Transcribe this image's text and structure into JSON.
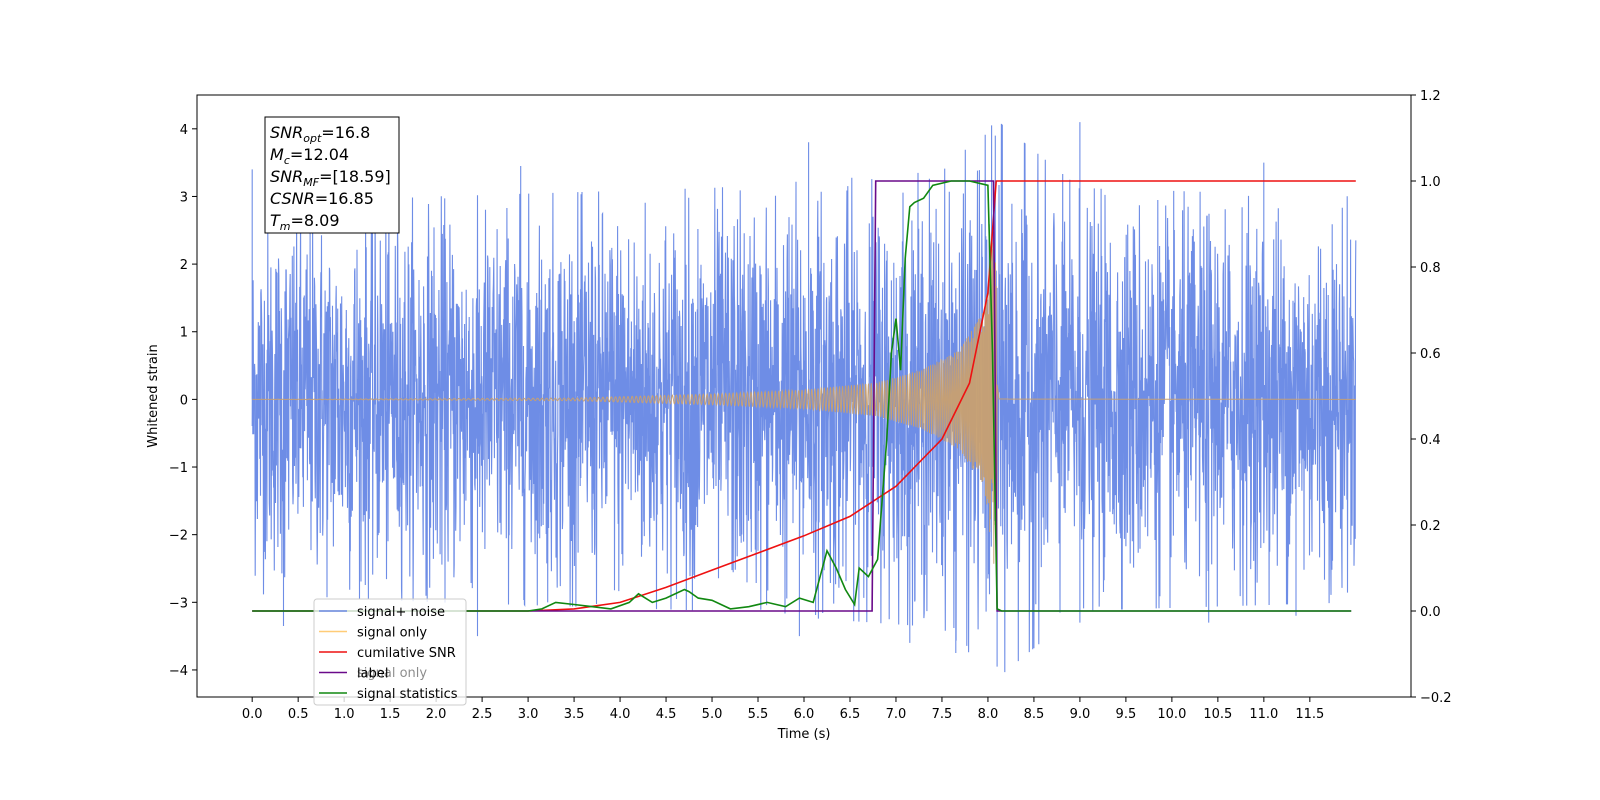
{
  "chart_data": {
    "type": "line",
    "xlabel": "Time (s)",
    "ylabel": "Whitened strain",
    "xlim": [
      -0.6,
      12.6
    ],
    "ylim": [
      -4.4,
      4.5
    ],
    "y2lim": [
      -0.2,
      1.2
    ],
    "x_ticks": [
      "0.0",
      "0.5",
      "1.0",
      "1.5",
      "2.0",
      "2.5",
      "3.0",
      "3.5",
      "4.0",
      "4.5",
      "5.0",
      "5.5",
      "6.0",
      "6.5",
      "7.0",
      "7.5",
      "8.0",
      "8.5",
      "9.0",
      "9.5",
      "10.0",
      "10.5",
      "11.0",
      "11.5"
    ],
    "y_ticks": [
      "4",
      "3",
      "2",
      "1",
      "0",
      "−1",
      "−2",
      "−3",
      "−4"
    ],
    "y2_ticks": [
      "1.2",
      "1.0",
      "0.8",
      "0.6",
      "0.4",
      "0.2",
      "0.0",
      "−0.2"
    ],
    "grid": false,
    "legend_position": "lower-left",
    "annotation": {
      "lines": [
        {
          "base": "SNR",
          "sub": "opt",
          "value": "=16.8"
        },
        {
          "base": "M",
          "sub": "c",
          "value": "=12.04"
        },
        {
          "base": "SNR",
          "sub": "MF",
          "value": "=[18.59]"
        },
        {
          "base": "CSNR",
          "sub": "",
          "value": "=16.85"
        },
        {
          "base": "T",
          "sub": "m",
          "value": "=8.09"
        }
      ]
    },
    "legend_overlap_text": "signal only",
    "series": [
      {
        "name": "signal+ noise",
        "color": "#6e8de6",
        "axis": "left",
        "kind": "noise_band",
        "x_range": [
          0.0,
          12.0
        ],
        "envelope": [
          [
            0.0,
            2.3
          ],
          [
            2.0,
            2.4
          ],
          [
            5.0,
            2.5
          ],
          [
            7.5,
            2.7
          ],
          [
            8.1,
            3.3
          ],
          [
            9.0,
            2.5
          ],
          [
            12.0,
            2.4
          ]
        ],
        "peak_spikes": [
          [
            0.0,
            3.4
          ],
          [
            0.34,
            -3.35
          ],
          [
            2.45,
            -3.5
          ],
          [
            2.92,
            3.45
          ],
          [
            5.95,
            -3.5
          ],
          [
            6.05,
            3.8
          ],
          [
            6.75,
            2.7
          ],
          [
            7.15,
            -3.6
          ],
          [
            7.65,
            -3.75
          ],
          [
            8.08,
            3.9
          ],
          [
            8.1,
            -3.95
          ],
          [
            9.0,
            4.1
          ],
          [
            9.0,
            -3.3
          ],
          [
            10.4,
            -3.3
          ],
          [
            11.0,
            3.5
          ],
          [
            11.35,
            -3.2
          ]
        ]
      },
      {
        "name": "signal only",
        "color": "#c8a070",
        "axis": "left",
        "kind": "chirp",
        "x_range": [
          0.0,
          12.0
        ],
        "amplitude": [
          [
            0.0,
            0.0
          ],
          [
            3.5,
            0.02
          ],
          [
            5.0,
            0.08
          ],
          [
            6.0,
            0.14
          ],
          [
            6.8,
            0.25
          ],
          [
            7.3,
            0.45
          ],
          [
            7.7,
            0.75
          ],
          [
            7.95,
            1.3
          ],
          [
            8.07,
            2.5
          ],
          [
            8.09,
            3.2
          ],
          [
            8.12,
            0.05
          ],
          [
            12.0,
            0.0
          ]
        ],
        "legend_color": "#ffcc77"
      },
      {
        "name": "cumilative SNR",
        "color": "#ee1111",
        "axis": "right",
        "x": [
          0.0,
          3.0,
          3.5,
          4.0,
          4.5,
          5.0,
          5.5,
          6.0,
          6.5,
          7.0,
          7.5,
          7.8,
          8.0,
          8.09,
          12.0
        ],
        "values": [
          0.0,
          0.0,
          0.005,
          0.02,
          0.055,
          0.095,
          0.135,
          0.175,
          0.22,
          0.29,
          0.4,
          0.53,
          0.74,
          1.0,
          1.0
        ]
      },
      {
        "name": "label",
        "color": "#6a0a8a",
        "axis": "right",
        "x": [
          0.0,
          6.74,
          6.78,
          8.06,
          8.1,
          8.12,
          11.95
        ],
        "values": [
          0.0,
          0.0,
          1.0,
          1.0,
          0.0,
          0.0,
          0.0
        ]
      },
      {
        "name": "signal statistics",
        "color": "#118811",
        "axis": "right",
        "x": [
          0.0,
          3.0,
          3.15,
          3.3,
          3.5,
          3.7,
          3.9,
          4.1,
          4.2,
          4.35,
          4.5,
          4.7,
          4.75,
          4.85,
          5.0,
          5.2,
          5.4,
          5.6,
          5.8,
          5.95,
          6.1,
          6.25,
          6.35,
          6.45,
          6.55,
          6.6,
          6.7,
          6.8,
          6.9,
          6.95,
          7.0,
          7.05,
          7.1,
          7.15,
          7.2,
          7.3,
          7.4,
          7.6,
          7.8,
          8.0,
          8.05,
          8.1,
          8.15,
          11.95
        ],
        "values": [
          0.0,
          0.0,
          0.005,
          0.02,
          0.015,
          0.01,
          0.005,
          0.02,
          0.04,
          0.02,
          0.03,
          0.05,
          0.045,
          0.03,
          0.025,
          0.005,
          0.01,
          0.02,
          0.01,
          0.03,
          0.02,
          0.14,
          0.1,
          0.05,
          0.015,
          0.1,
          0.08,
          0.12,
          0.4,
          0.6,
          0.68,
          0.56,
          0.82,
          0.94,
          0.95,
          0.96,
          0.99,
          1.0,
          1.0,
          0.99,
          0.6,
          0.005,
          0.0,
          0.0
        ]
      }
    ]
  }
}
